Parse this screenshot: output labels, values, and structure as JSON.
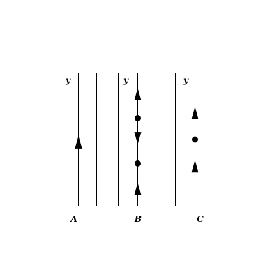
{
  "colors": {
    "ink": "#000000",
    "background": "#ffffff"
  },
  "panels": [
    {
      "id": "A",
      "label": "A",
      "axis_label": "y",
      "markers": [
        {
          "kind": "arrow",
          "direction": "up",
          "level": 0.48
        }
      ]
    },
    {
      "id": "B",
      "label": "B",
      "axis_label": "y",
      "markers": [
        {
          "kind": "arrow",
          "direction": "up",
          "level": 0.13
        },
        {
          "kind": "dot",
          "level": 0.32
        },
        {
          "kind": "arrow",
          "direction": "down",
          "level": 0.51
        },
        {
          "kind": "dot",
          "level": 0.66
        },
        {
          "kind": "arrow",
          "direction": "up",
          "level": 0.84
        }
      ]
    },
    {
      "id": "C",
      "label": "C",
      "axis_label": "y",
      "markers": [
        {
          "kind": "arrow",
          "direction": "up",
          "level": 0.3
        },
        {
          "kind": "dot",
          "level": 0.5
        },
        {
          "kind": "arrow",
          "direction": "up",
          "level": 0.7
        }
      ]
    }
  ]
}
